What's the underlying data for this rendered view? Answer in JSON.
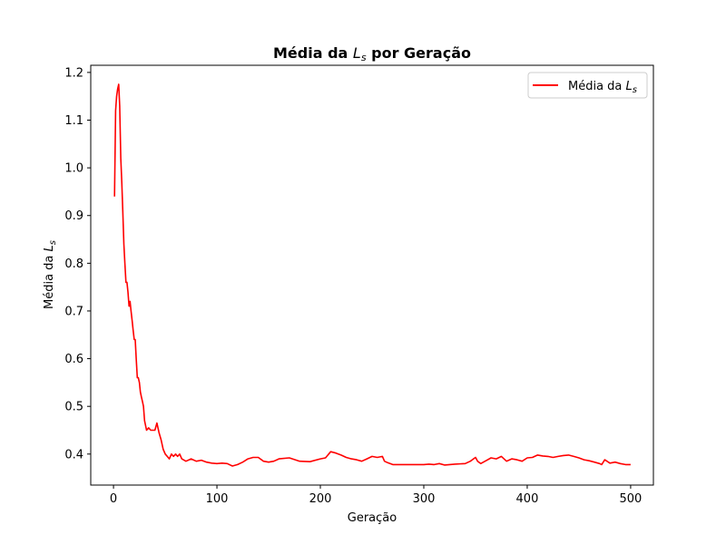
{
  "chart_data": {
    "type": "line",
    "title_prefix": "Média da ",
    "title_var": "L",
    "title_sub": "s",
    "title_suffix": " por Geração",
    "xlabel": "Geração",
    "ylabel_prefix": "Média da ",
    "ylabel_var": "L",
    "ylabel_sub": "s",
    "xlim": [
      -22,
      522
    ],
    "ylim": [
      0.335,
      1.215
    ],
    "xticks": [
      0,
      100,
      200,
      300,
      400,
      500
    ],
    "yticks": [
      0.4,
      0.5,
      0.6,
      0.7,
      0.8,
      0.9,
      1.0,
      1.1,
      1.2
    ],
    "ytick_labels": [
      "0.4",
      "0.5",
      "0.6",
      "0.7",
      "0.8",
      "0.9",
      "1.0",
      "1.1",
      "1.2"
    ],
    "legend_position": "top-right",
    "series": [
      {
        "name_prefix": "Média da ",
        "name_var": "L",
        "name_sub": "s",
        "color": "#ff0000",
        "x": [
          1,
          2,
          3,
          4,
          5,
          6,
          7,
          8,
          9,
          10,
          11,
          12,
          13,
          14,
          15,
          16,
          17,
          18,
          19,
          20,
          21,
          22,
          23,
          24,
          25,
          26,
          27,
          28,
          29,
          30,
          32,
          34,
          36,
          38,
          40,
          42,
          44,
          46,
          48,
          50,
          52,
          54,
          56,
          58,
          60,
          62,
          64,
          66,
          70,
          75,
          80,
          85,
          90,
          95,
          100,
          105,
          110,
          115,
          120,
          125,
          130,
          135,
          140,
          145,
          150,
          155,
          160,
          170,
          180,
          190,
          200,
          205,
          210,
          215,
          220,
          225,
          230,
          235,
          240,
          245,
          250,
          255,
          260,
          262,
          265,
          270,
          280,
          290,
          300,
          305,
          310,
          315,
          320,
          330,
          340,
          345,
          350,
          352,
          355,
          360,
          365,
          370,
          375,
          380,
          385,
          390,
          395,
          400,
          405,
          410,
          415,
          420,
          425,
          430,
          435,
          440,
          445,
          450,
          455,
          460,
          465,
          470,
          472,
          475,
          480,
          485,
          490,
          495,
          500
        ],
        "y": [
          0.94,
          1.12,
          1.15,
          1.165,
          1.175,
          1.13,
          1.02,
          0.97,
          0.91,
          0.84,
          0.8,
          0.76,
          0.76,
          0.74,
          0.71,
          0.72,
          0.7,
          0.68,
          0.66,
          0.64,
          0.64,
          0.6,
          0.56,
          0.56,
          0.55,
          0.53,
          0.52,
          0.51,
          0.5,
          0.47,
          0.45,
          0.455,
          0.45,
          0.45,
          0.45,
          0.465,
          0.445,
          0.43,
          0.41,
          0.4,
          0.395,
          0.39,
          0.4,
          0.395,
          0.4,
          0.395,
          0.4,
          0.39,
          0.385,
          0.39,
          0.385,
          0.387,
          0.383,
          0.381,
          0.38,
          0.381,
          0.38,
          0.375,
          0.378,
          0.383,
          0.39,
          0.393,
          0.393,
          0.385,
          0.383,
          0.385,
          0.39,
          0.392,
          0.385,
          0.384,
          0.39,
          0.392,
          0.405,
          0.402,
          0.398,
          0.393,
          0.39,
          0.388,
          0.385,
          0.39,
          0.395,
          0.393,
          0.395,
          0.385,
          0.382,
          0.378,
          0.378,
          0.378,
          0.378,
          0.379,
          0.378,
          0.38,
          0.377,
          0.379,
          0.38,
          0.385,
          0.393,
          0.385,
          0.38,
          0.386,
          0.392,
          0.39,
          0.395,
          0.385,
          0.39,
          0.388,
          0.385,
          0.392,
          0.393,
          0.398,
          0.396,
          0.395,
          0.393,
          0.395,
          0.397,
          0.398,
          0.395,
          0.392,
          0.388,
          0.386,
          0.383,
          0.38,
          0.378,
          0.388,
          0.381,
          0.383,
          0.38,
          0.378,
          0.378
        ]
      }
    ]
  }
}
